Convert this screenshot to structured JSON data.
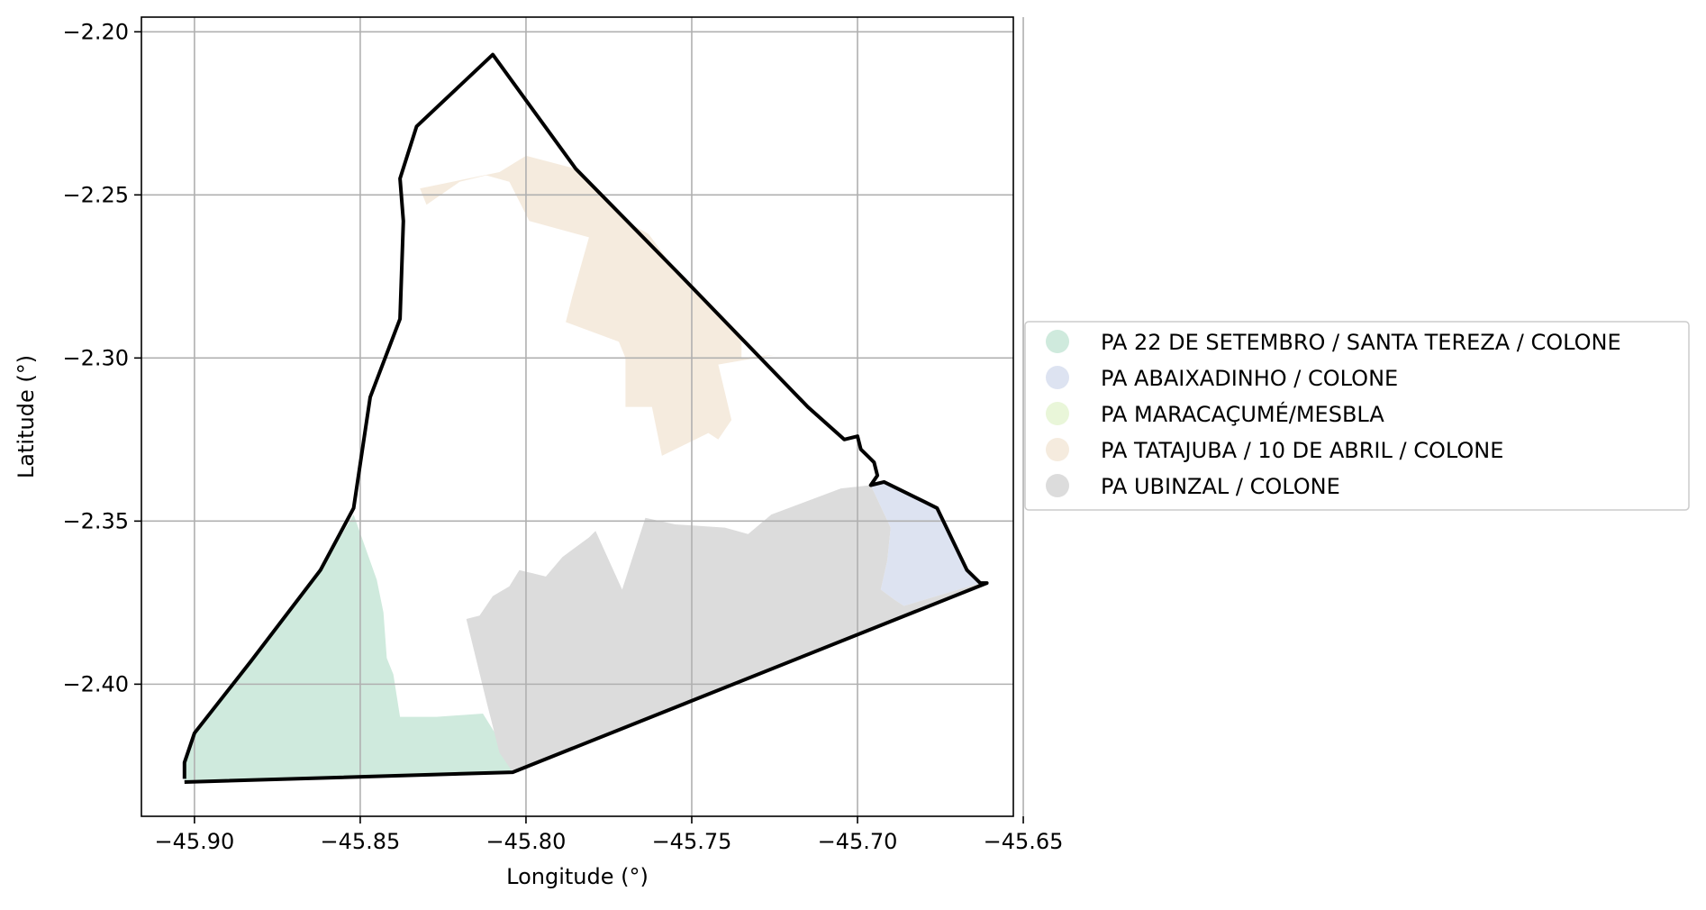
{
  "map": {
    "xlabel": "Longitude (°)",
    "ylabel": "Latitude (°)",
    "xlim": [
      -45.916,
      -45.653
    ],
    "ylim": [
      -2.4405,
      -2.1955
    ],
    "grid": true,
    "legend_position": "center-right",
    "x_ticks": [
      {
        "value": -45.9,
        "label": "−45.90"
      },
      {
        "value": -45.85,
        "label": "−45.85"
      },
      {
        "value": -45.8,
        "label": "−45.80"
      },
      {
        "value": -45.75,
        "label": "−45.75"
      },
      {
        "value": -45.7,
        "label": "−45.70"
      },
      {
        "value": -45.65,
        "label": "−45.65"
      }
    ],
    "y_ticks": [
      {
        "value": -2.2,
        "label": "−2.20"
      },
      {
        "value": -2.25,
        "label": "−2.25"
      },
      {
        "value": -2.3,
        "label": "−2.30"
      },
      {
        "value": -2.35,
        "label": "−2.35"
      },
      {
        "value": -2.4,
        "label": "−2.40"
      }
    ],
    "boundary": [
      [
        -45.903,
        -2.429
      ],
      [
        -45.903,
        -2.424
      ],
      [
        -45.9,
        -2.415
      ],
      [
        -45.883,
        -2.393
      ],
      [
        -45.862,
        -2.365
      ],
      [
        -45.852,
        -2.346
      ],
      [
        -45.847,
        -2.312
      ],
      [
        -45.838,
        -2.288
      ],
      [
        -45.837,
        -2.258
      ],
      [
        -45.838,
        -2.245
      ],
      [
        -45.833,
        -2.229
      ],
      [
        -45.81,
        -2.207
      ],
      [
        -45.795,
        -2.228
      ],
      [
        -45.785,
        -2.242
      ],
      [
        -45.755,
        -2.273
      ],
      [
        -45.735,
        -2.294
      ],
      [
        -45.715,
        -2.315
      ],
      [
        -45.704,
        -2.325
      ],
      [
        -45.7,
        -2.324
      ],
      [
        -45.699,
        -2.328
      ],
      [
        -45.697,
        -2.33
      ],
      [
        -45.695,
        -2.332
      ],
      [
        -45.694,
        -2.336
      ],
      [
        -45.696,
        -2.339
      ],
      [
        -45.692,
        -2.338
      ],
      [
        -45.68,
        -2.344
      ],
      [
        -45.676,
        -2.346
      ],
      [
        -45.667,
        -2.365
      ],
      [
        -45.663,
        -2.369
      ],
      [
        -45.661,
        -2.369
      ],
      [
        -45.804,
        -2.427
      ],
      [
        -45.903,
        -2.43
      ]
    ],
    "regions": [
      {
        "name": "PA 22 DE SETEMBRO / SANTA TEREZA / COLONE",
        "color": "#cfeadd",
        "polygons": [
          [
            [
              -45.852,
              -2.348
            ],
            [
              -45.845,
              -2.368
            ],
            [
              -45.843,
              -2.378
            ],
            [
              -45.842,
              -2.392
            ],
            [
              -45.84,
              -2.397
            ],
            [
              -45.838,
              -2.41
            ],
            [
              -45.827,
              -2.41
            ],
            [
              -45.813,
              -2.409
            ],
            [
              -45.802,
              -2.427
            ],
            [
              -45.903,
              -2.43
            ],
            [
              -45.903,
              -2.424
            ],
            [
              -45.9,
              -2.415
            ],
            [
              -45.883,
              -2.393
            ],
            [
              -45.862,
              -2.365
            ]
          ]
        ]
      },
      {
        "name": "PA ABAIXADINHO / COLONE",
        "color": "#dde3f1",
        "polygons": [
          [
            [
              -45.696,
              -2.339
            ],
            [
              -45.692,
              -2.338
            ],
            [
              -45.68,
              -2.344
            ],
            [
              -45.676,
              -2.346
            ],
            [
              -45.667,
              -2.365
            ],
            [
              -45.663,
              -2.369
            ],
            [
              -45.686,
              -2.376
            ],
            [
              -45.689,
              -2.374
            ],
            [
              -45.693,
              -2.371
            ],
            [
              -45.691,
              -2.362
            ],
            [
              -45.69,
              -2.352
            ]
          ]
        ]
      },
      {
        "name": "PA MARACAÇUMÉ/MESBLA",
        "color": "#e9f6d9",
        "polygons": []
      },
      {
        "name": "PA TATAJUBA / 10 DE ABRIL / COLONE",
        "color": "#f5ebde",
        "polygons": [
          [
            [
              -45.832,
              -2.248
            ],
            [
              -45.808,
              -2.243
            ],
            [
              -45.8,
              -2.238
            ],
            [
              -45.785,
              -2.242
            ],
            [
              -45.77,
              -2.258
            ],
            [
              -45.763,
              -2.262
            ],
            [
              -45.755,
              -2.273
            ],
            [
              -45.735,
              -2.294
            ],
            [
              -45.735,
              -2.3
            ],
            [
              -45.725,
              -2.299
            ],
            [
              -45.742,
              -2.302
            ],
            [
              -45.738,
              -2.319
            ],
            [
              -45.742,
              -2.325
            ],
            [
              -45.745,
              -2.323
            ],
            [
              -45.759,
              -2.33
            ],
            [
              -45.762,
              -2.315
            ],
            [
              -45.77,
              -2.315
            ],
            [
              -45.77,
              -2.3
            ],
            [
              -45.772,
              -2.295
            ],
            [
              -45.788,
              -2.289
            ],
            [
              -45.786,
              -2.281
            ],
            [
              -45.781,
              -2.263
            ],
            [
              -45.799,
              -2.258
            ],
            [
              -45.805,
              -2.246
            ],
            [
              -45.812,
              -2.244
            ],
            [
              -45.82,
              -2.246
            ],
            [
              -45.83,
              -2.253
            ]
          ]
        ]
      },
      {
        "name": "PA UBINZAL / COLONE",
        "color": "#dcdcdc",
        "polygons": [
          [
            [
              -45.814,
              -2.379
            ],
            [
              -45.81,
              -2.373
            ],
            [
              -45.805,
              -2.37
            ],
            [
              -45.802,
              -2.365
            ],
            [
              -45.798,
              -2.366
            ],
            [
              -45.794,
              -2.367
            ],
            [
              -45.789,
              -2.361
            ],
            [
              -45.781,
              -2.355
            ],
            [
              -45.779,
              -2.353
            ],
            [
              -45.771,
              -2.371
            ],
            [
              -45.764,
              -2.349
            ],
            [
              -45.755,
              -2.351
            ],
            [
              -45.74,
              -2.352
            ],
            [
              -45.733,
              -2.354
            ],
            [
              -45.726,
              -2.348
            ],
            [
              -45.705,
              -2.34
            ],
            [
              -45.696,
              -2.339
            ],
            [
              -45.69,
              -2.352
            ],
            [
              -45.691,
              -2.362
            ],
            [
              -45.693,
              -2.371
            ],
            [
              -45.689,
              -2.374
            ],
            [
              -45.686,
              -2.376
            ],
            [
              -45.663,
              -2.369
            ],
            [
              -45.661,
              -2.369
            ],
            [
              -45.804,
              -2.427
            ],
            [
              -45.808,
              -2.421
            ],
            [
              -45.812,
              -2.405
            ],
            [
              -45.818,
              -2.38
            ]
          ]
        ]
      }
    ]
  }
}
